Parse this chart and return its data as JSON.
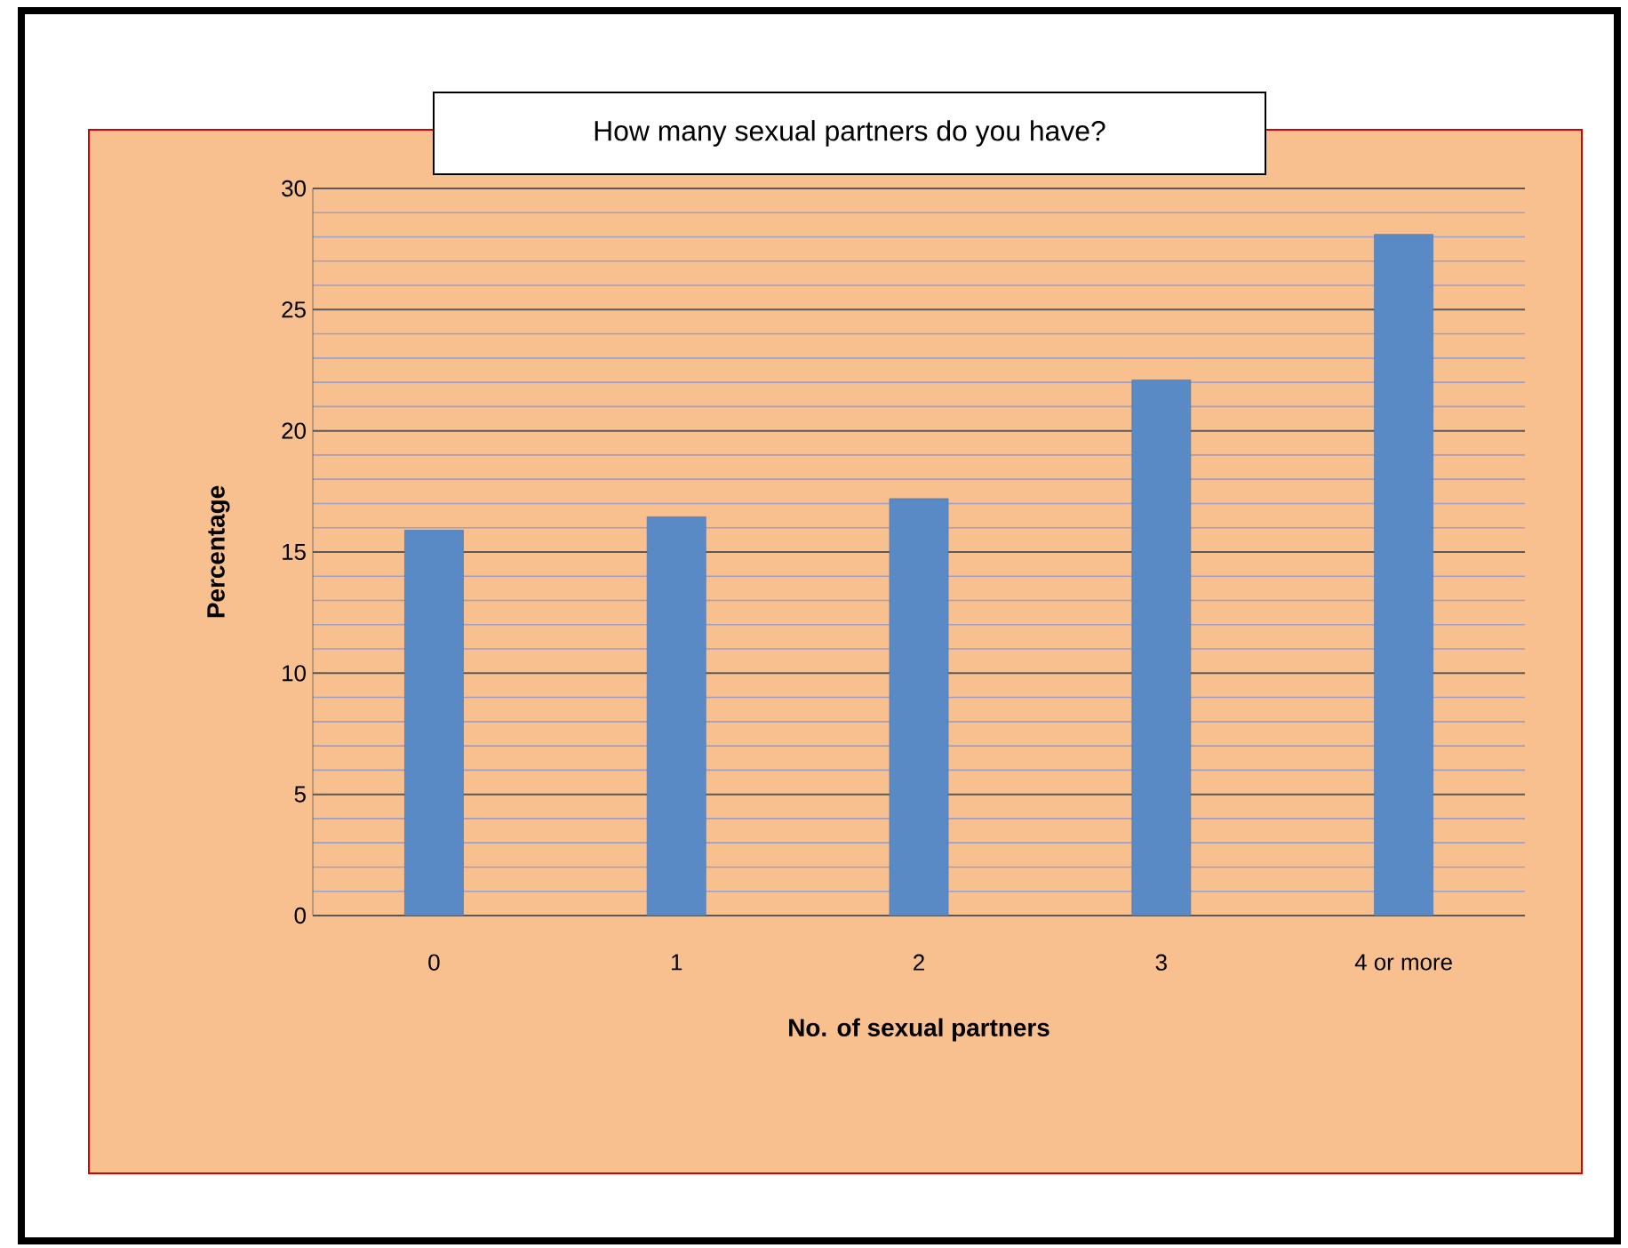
{
  "chart_data": {
    "type": "bar",
    "title": "How many sexual partners do you have?",
    "xlabel": "No. of sexual partners",
    "ylabel": "Percentage",
    "categories": [
      "0",
      "1",
      "2",
      "3",
      "4 or more"
    ],
    "values": [
      15.9,
      16.45,
      17.2,
      22.1,
      28.1
    ],
    "color": "#5a8ac6",
    "ylim": [
      0,
      30
    ],
    "yticks": [
      0,
      5,
      10,
      15,
      20,
      25,
      30
    ],
    "grid": "y"
  }
}
